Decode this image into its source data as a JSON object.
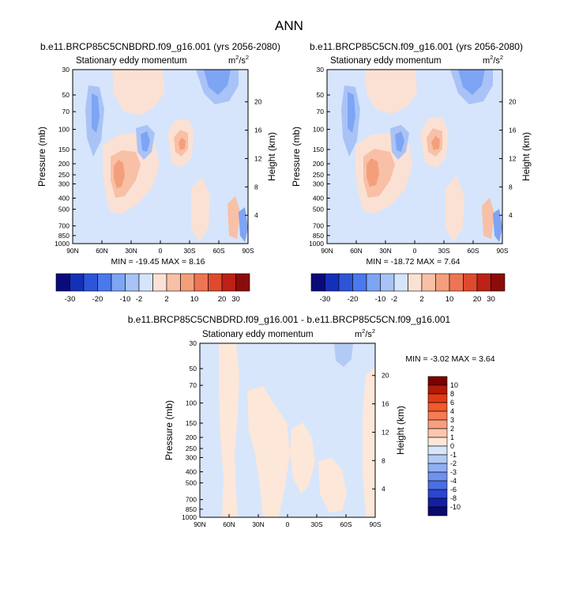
{
  "figure": {
    "main_title": "ANN"
  },
  "chart_data": [
    {
      "type": "heatmap",
      "title": "b.e11.BRCP85C5CNBDRD.f09_g16.001 (yrs 2056-2080)",
      "subtitle_left": "Stationary eddy momentum",
      "units": {
        "base": "m",
        "exp1": "2",
        "mid": "/s",
        "exp2": "2"
      },
      "ylabel": "Pressure (mb)",
      "ylabel_right": "Height (km)",
      "x_ticks": [
        "90N",
        "60N",
        "30N",
        "0",
        "30S",
        "60S",
        "90S"
      ],
      "y_ticks": [
        "30",
        "50",
        "70",
        "100",
        "150",
        "200",
        "250",
        "300",
        "400",
        "500",
        "700",
        "850",
        "1000"
      ],
      "y_ticks_right": [
        "20",
        "16",
        "12",
        "8",
        "4"
      ],
      "stats": "MIN = -19.45  MAX =   8.16",
      "min": -19.45,
      "max": 8.16,
      "colorbar_labels": [
        "-30",
        "-20",
        "-10",
        "-2",
        "2",
        "10",
        "20",
        "30"
      ]
    },
    {
      "type": "heatmap",
      "title": "b.e11.BRCP85C5CN.f09_g16.001 (yrs 2056-2080)",
      "subtitle_left": "Stationary eddy momentum",
      "units": {
        "base": "m",
        "exp1": "2",
        "mid": "/s",
        "exp2": "2"
      },
      "ylabel": "Pressure (mb)",
      "ylabel_right": "Height (km)",
      "x_ticks": [
        "90N",
        "60N",
        "30N",
        "0",
        "30S",
        "60S",
        "90S"
      ],
      "y_ticks": [
        "30",
        "50",
        "70",
        "100",
        "150",
        "200",
        "250",
        "300",
        "400",
        "500",
        "700",
        "850",
        "1000"
      ],
      "y_ticks_right": [
        "20",
        "16",
        "12",
        "8",
        "4"
      ],
      "stats": "MIN = -18.72  MAX =   7.64",
      "min": -18.72,
      "max": 7.64,
      "colorbar_labels": [
        "-30",
        "-20",
        "-10",
        "-2",
        "2",
        "10",
        "20",
        "30"
      ]
    },
    {
      "type": "heatmap",
      "title": "b.e11.BRCP85C5CNBDRD.f09_g16.001 - b.e11.BRCP85C5CN.f09_g16.001",
      "subtitle_left": "Stationary eddy momentum",
      "units": {
        "base": "m",
        "exp1": "2",
        "mid": "/s",
        "exp2": "2"
      },
      "ylabel": "Pressure (mb)",
      "ylabel_right": "Height (km)",
      "x_ticks": [
        "90N",
        "60N",
        "30N",
        "0",
        "30S",
        "60S",
        "90S"
      ],
      "y_ticks": [
        "30",
        "50",
        "70",
        "100",
        "150",
        "200",
        "250",
        "300",
        "400",
        "500",
        "700",
        "850",
        "1000"
      ],
      "y_ticks_right": [
        "20",
        "16",
        "12",
        "8",
        "4"
      ],
      "stats": "MIN = -3.02  MAX =   3.64",
      "min": -3.02,
      "max": 3.64,
      "colorbar_labels": [
        "10",
        "8",
        "6",
        "4",
        "3",
        "2",
        "1",
        "0",
        "-1",
        "-2",
        "-3",
        "-4",
        "-6",
        "-8",
        "-10"
      ]
    }
  ],
  "colors": {
    "colorbar_main": [
      "#0a0a7a",
      "#1530b8",
      "#2d55d8",
      "#4a78ee",
      "#7ea4f4",
      "#a9c3f7",
      "#d6e5fb",
      "#fbe1d4",
      "#f8c0a6",
      "#f49f7c",
      "#ee7553",
      "#df4a2f",
      "#bb2215",
      "#8b0d0b"
    ],
    "colorbar_diff": [
      "#7a0000",
      "#b31a08",
      "#e03a16",
      "#f05a2c",
      "#f57c54",
      "#f8a07e",
      "#fbc8ae",
      "#fde7d8",
      "#d7e6fb",
      "#b2cbf6",
      "#8fb0f2",
      "#6f92ee",
      "#4a6fe4",
      "#2a46cf",
      "#141fa0",
      "#0a0a6a"
    ]
  }
}
